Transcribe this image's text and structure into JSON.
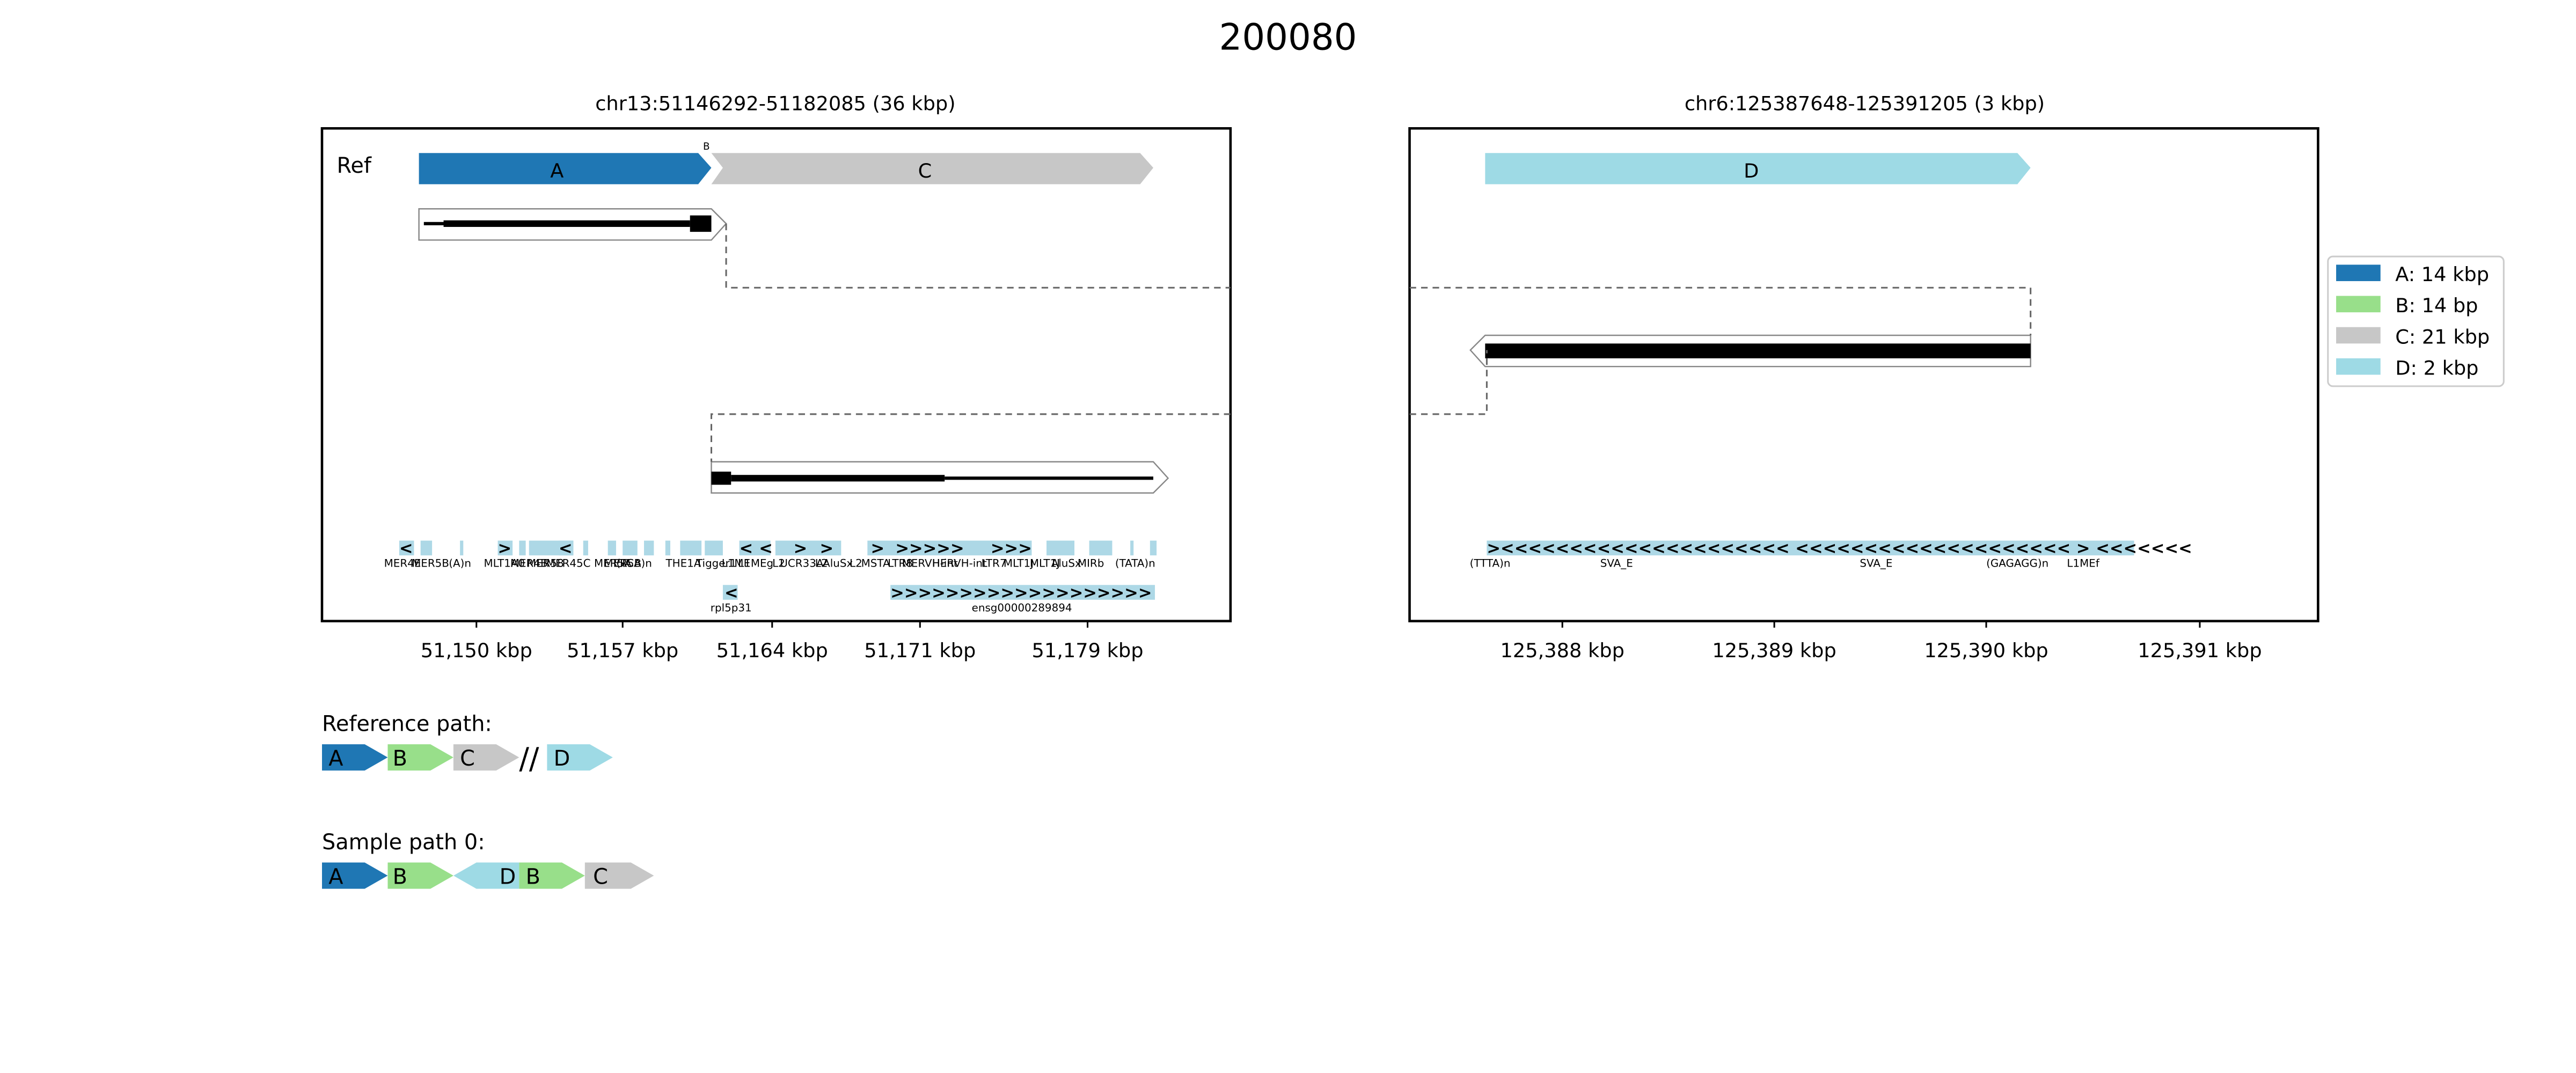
{
  "figure": {
    "title": "200080",
    "panels": [
      {
        "id": "left",
        "subtitle": "chr13:51146292-51182085 (36 kbp)",
        "row_label": "Ref",
        "segment_labels": [
          "A",
          "B",
          "C"
        ],
        "repeat_labels": [
          "MER4E",
          "MER5B",
          "(A)n",
          "MLT1A0",
          "MER4B",
          "MER58",
          "MER45C",
          "MER5A",
          "(TCA)n",
          "MER5B",
          "THE1A",
          "Tigger1",
          "L1ME",
          "L1MEg",
          "L2",
          "UCR33A",
          "L2",
          "AluSx",
          "L2",
          "MSTA",
          "LTR8",
          "MERVH-int",
          "HERVH-int",
          "LTR7",
          "MLT1J",
          "MLT1J",
          "AluSx",
          "MIRb",
          "(TATA)n"
        ],
        "gene_labels": [
          "rpl5p31",
          "ensg00000289894"
        ],
        "xticks": [
          "51,150 kbp",
          "51,157 kbp",
          "51,164 kbp",
          "51,171 kbp",
          "51,179 kbp"
        ]
      },
      {
        "id": "right",
        "subtitle": "chr6:125387648-125391205 (3 kbp)",
        "segment_labels": [
          "D"
        ],
        "repeat_labels": [
          "(TTTA)n",
          "SVA_E",
          "SVA_E",
          "(GAGAGG)n",
          "L1MEf"
        ],
        "xticks": [
          "125,388 kbp",
          "125,389 kbp",
          "125,390 kbp",
          "125,391 kbp"
        ]
      }
    ],
    "legend": [
      {
        "label": "A: 14 kbp",
        "color": "#1f77b4"
      },
      {
        "label": "B: 14 bp",
        "color": "#98df8a"
      },
      {
        "label": "C: 21 kbp",
        "color": "#c7c7c7"
      },
      {
        "label": "D: 2 kbp",
        "color": "#9edae5"
      }
    ],
    "reference_path": {
      "label": "Reference path:",
      "items": [
        "A",
        "B",
        "C",
        "//",
        "D"
      ]
    },
    "sample_path": {
      "label": "Sample path 0:",
      "items": [
        "A",
        "B",
        "D",
        "B",
        "C"
      ]
    },
    "colors": {
      "A": "#1f77b4",
      "B": "#98df8a",
      "C": "#c7c7c7",
      "D": "#9edae5",
      "repeat": "#add8e6"
    }
  }
}
